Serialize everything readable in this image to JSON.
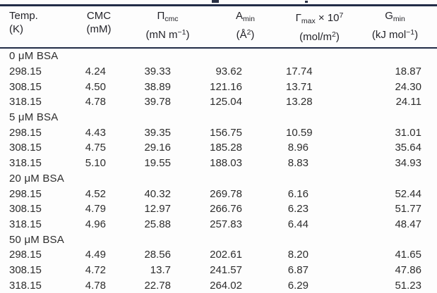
{
  "colors": {
    "rule": "#212c47",
    "text": "#2d2d2d",
    "background": "#fdfdfd"
  },
  "table": {
    "columns": [
      {
        "id": "temp",
        "title": [
          {
            "t": "Temp."
          }
        ],
        "unit": [
          {
            "t": "(K)"
          }
        ]
      },
      {
        "id": "cmc",
        "title": [
          {
            "t": "CMC"
          }
        ],
        "unit": [
          {
            "t": "(mM)"
          }
        ]
      },
      {
        "id": "pi_cmc",
        "title": [
          {
            "t": "Π"
          },
          {
            "t": "cmc",
            "s": "sub"
          }
        ],
        "unit": [
          {
            "t": "(mN m"
          },
          {
            "t": "−1",
            "s": "sup"
          },
          {
            "t": ")"
          }
        ]
      },
      {
        "id": "a_min",
        "title": [
          {
            "t": "A"
          },
          {
            "t": "min",
            "s": "sub"
          }
        ],
        "unit": [
          {
            "t": "(Å"
          },
          {
            "t": "2",
            "s": "sup"
          },
          {
            "t": ")"
          }
        ]
      },
      {
        "id": "gamma_max",
        "title": [
          {
            "t": "Γ"
          },
          {
            "t": "max",
            "s": "sub"
          },
          {
            "t": " × 10"
          },
          {
            "t": "7",
            "s": "sup"
          }
        ],
        "unit": [
          {
            "t": "(mol/m"
          },
          {
            "t": "2",
            "s": "sup"
          },
          {
            "t": ")"
          }
        ]
      },
      {
        "id": "g_min",
        "title": [
          {
            "t": "G"
          },
          {
            "t": "min",
            "s": "sub"
          }
        ],
        "unit": [
          {
            "t": "(kJ mol"
          },
          {
            "t": "−1",
            "s": "sup"
          },
          {
            "t": ")"
          }
        ]
      }
    ],
    "sections": [
      {
        "label": "0 μM BSA",
        "rows": [
          [
            "298.15",
            "4.24",
            "39.33",
            "93.62",
            "17.74",
            "18.87"
          ],
          [
            "308.15",
            "4.50",
            "38.89",
            "121.16",
            "13.71",
            "24.30"
          ],
          [
            "318.15",
            "4.78",
            "39.78",
            "125.04",
            "13.28",
            "24.11"
          ]
        ]
      },
      {
        "label": "5 μM BSA",
        "rows": [
          [
            "298.15",
            "4.43",
            "39.35",
            "156.75",
            "10.59",
            "31.01"
          ],
          [
            "308.15",
            "4.75",
            "29.16",
            "185.28",
            "8.96",
            "35.64"
          ],
          [
            "318.15",
            "5.10",
            "19.55",
            "188.03",
            "8.83",
            "34.93"
          ]
        ]
      },
      {
        "label": "20 μM BSA",
        "rows": [
          [
            "298.15",
            "4.52",
            "40.32",
            "269.78",
            "6.16",
            "52.44"
          ],
          [
            "308.15",
            "4.79",
            "12.97",
            "266.76",
            "6.23",
            "51.77"
          ],
          [
            "318.15",
            "4.96",
            "25.88",
            "257.83",
            "6.44",
            "48.47"
          ]
        ]
      },
      {
        "label": "50 μM BSA",
        "rows": [
          [
            "298.15",
            "4.49",
            "28.56",
            "202.61",
            "8.20",
            "41.65"
          ],
          [
            "308.15",
            "4.72",
            "13.7",
            "241.57",
            "6.87",
            "47.86"
          ],
          [
            "318.15",
            "4.78",
            "22.78",
            "264.02",
            "6.29",
            "51.23"
          ]
        ]
      }
    ]
  }
}
